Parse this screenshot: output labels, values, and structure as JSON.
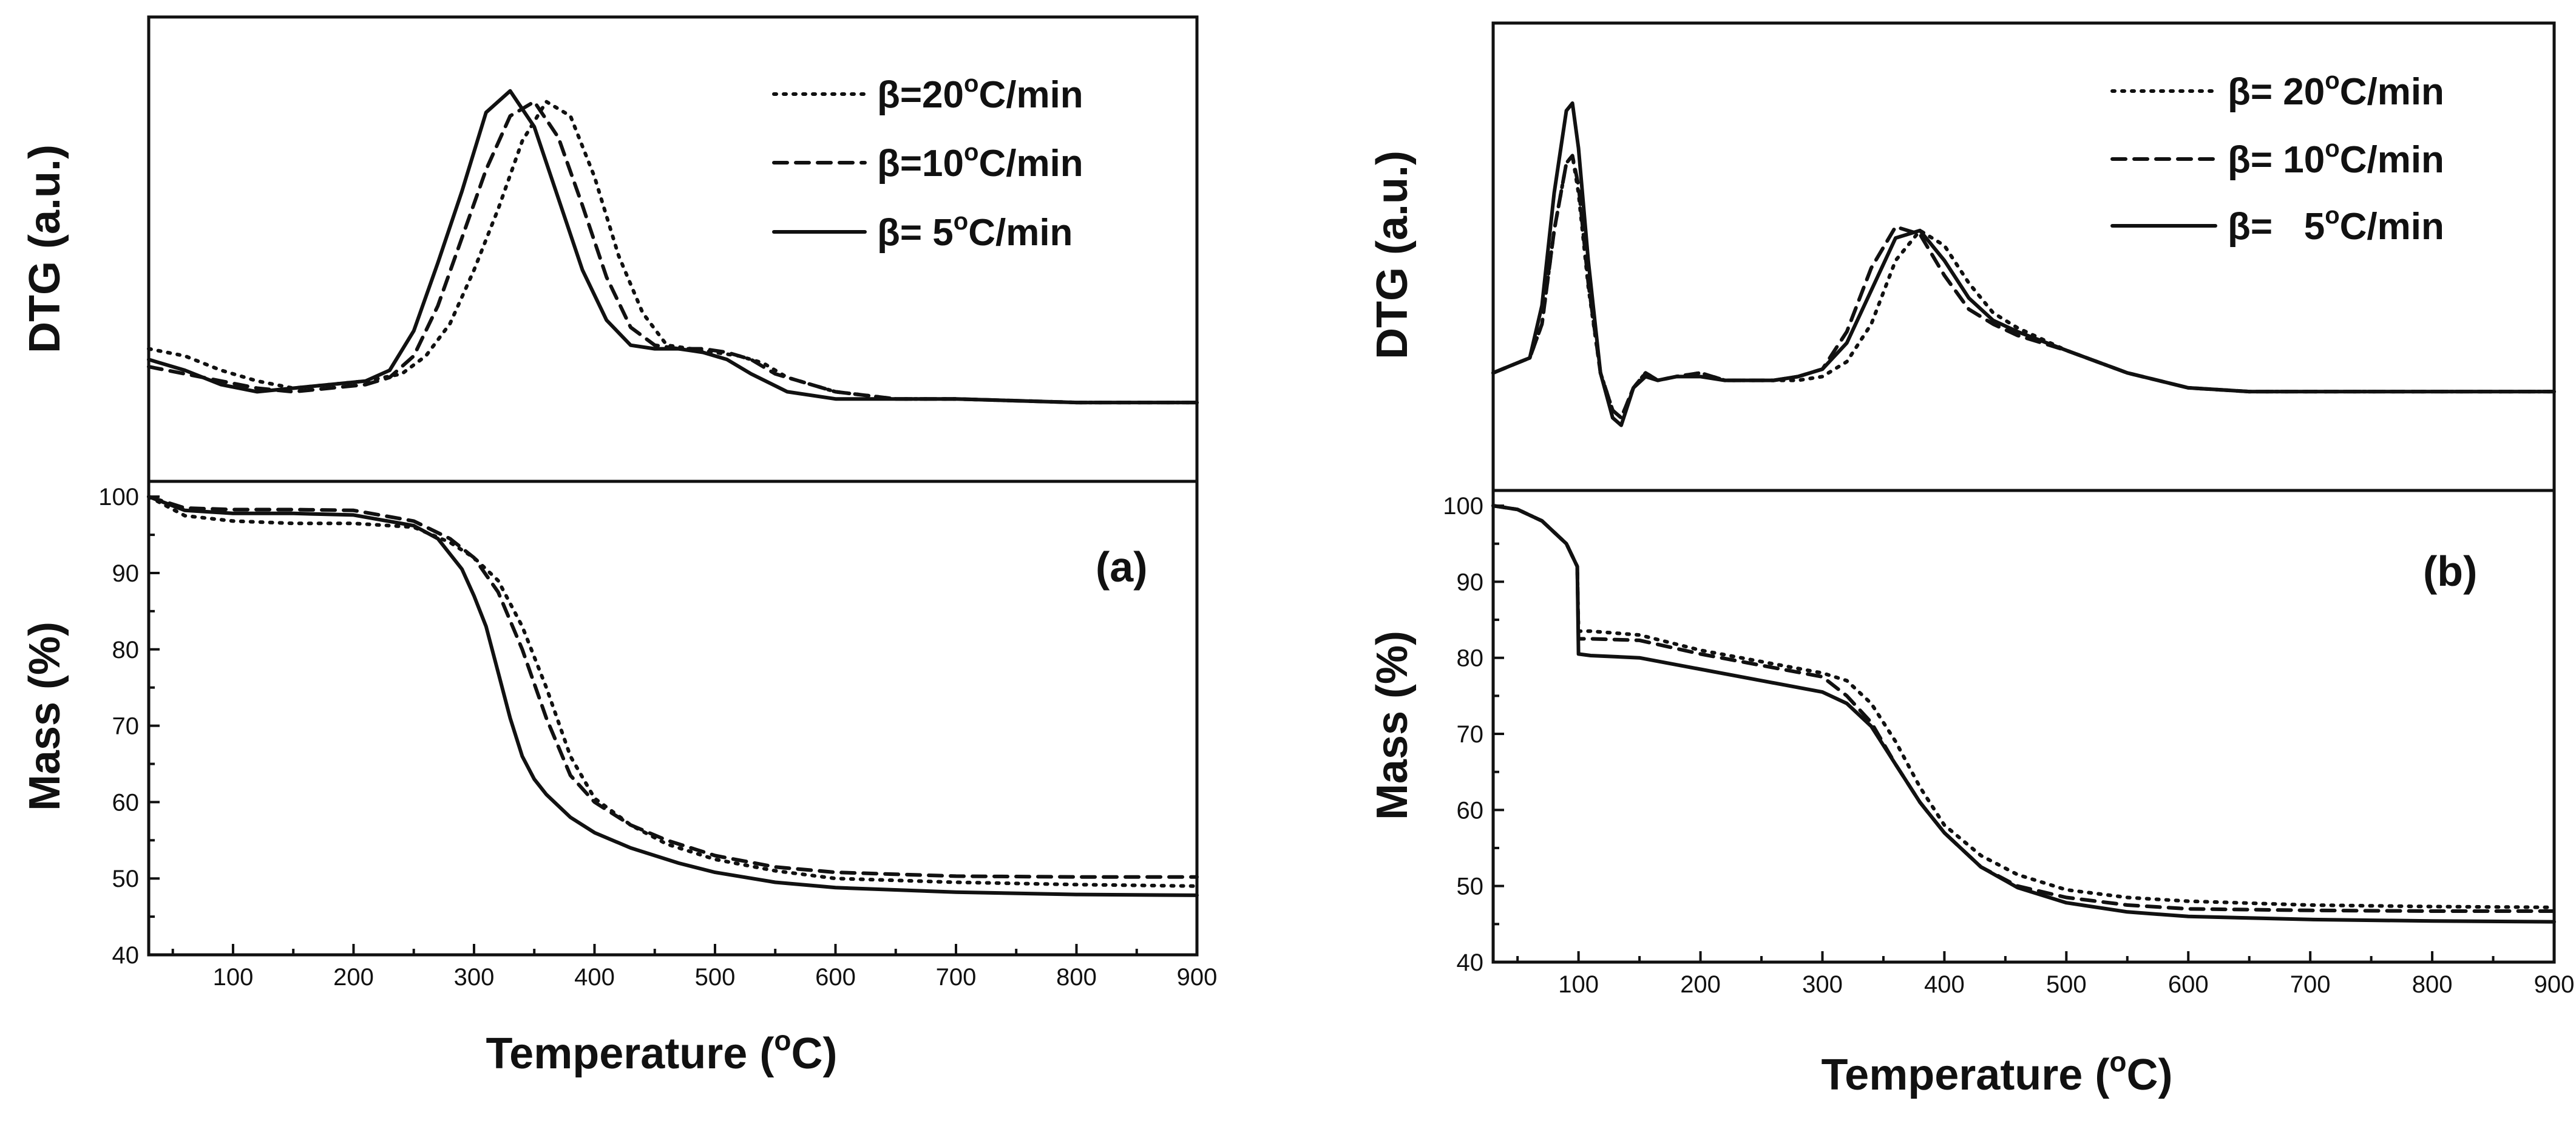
{
  "figure": {
    "x_title_main": "Temperature (",
    "x_title_sup": "o",
    "x_title_unit": "C)",
    "dtg_title": "DTG (a.u.)",
    "mass_title": "Mass (%)"
  },
  "chart_data": [
    {
      "type": "line",
      "panel": "(a)",
      "xlim": [
        30,
        900
      ],
      "x_ticks": [
        "100",
        "200",
        "300",
        "400",
        "500",
        "600",
        "700",
        "800",
        "900"
      ],
      "dtg": {
        "ylabel": "DTG (a.u.)",
        "ylim": [
          0,
          100
        ],
        "legend": [
          {
            "series": "20",
            "style": "dotted",
            "prefix": "β=20",
            "sup": "o",
            "suffix": "C/min"
          },
          {
            "series": "10",
            "style": "dashed",
            "prefix": "β=10",
            "sup": "o",
            "suffix": "C/min"
          },
          {
            "series": "5",
            "style": "solid",
            "prefix": "β= 5",
            "sup": "o",
            "suffix": "C/min"
          }
        ],
        "series": [
          {
            "name": "β=20°C/min",
            "style": "dotted",
            "x": [
              30,
              60,
              90,
              120,
              150,
              180,
              210,
              240,
              260,
              280,
              300,
              320,
              340,
              360,
              380,
              400,
              420,
              440,
              460,
              480,
              500,
              520,
              540,
              560,
              600,
              650,
              700,
              800,
              900
            ],
            "y": [
              26,
              24,
              20,
              17,
              15,
              16,
              17,
              19,
              24,
              33,
              48,
              65,
              84,
              95,
              91,
              74,
              52,
              36,
              27,
              26,
              25,
              24,
              22,
              18,
              14,
              12,
              12,
              11,
              11
            ]
          },
          {
            "name": "β=10°C/min",
            "style": "dashed",
            "x": [
              30,
              60,
              90,
              120,
              150,
              180,
              210,
              230,
              250,
              270,
              290,
              310,
              330,
              350,
              370,
              390,
              410,
              430,
              450,
              470,
              490,
              510,
              530,
              550,
              600,
              650,
              700,
              800,
              900
            ],
            "y": [
              21,
              19,
              17,
              15,
              14,
              15,
              16,
              18,
              24,
              38,
              57,
              76,
              91,
              95,
              85,
              66,
              46,
              32,
              27,
              26,
              26,
              25,
              23,
              19,
              14,
              12,
              12,
              11,
              11
            ]
          },
          {
            "name": "β=5°C/min",
            "style": "solid",
            "x": [
              30,
              60,
              90,
              120,
              150,
              180,
              210,
              230,
              250,
              270,
              290,
              310,
              330,
              350,
              370,
              390,
              410,
              430,
              450,
              470,
              490,
              510,
              530,
              560,
              600,
              650,
              700,
              800,
              900
            ],
            "y": [
              23,
              20,
              16,
              14,
              15,
              16,
              17,
              20,
              31,
              50,
              70,
              92,
              98,
              88,
              68,
              48,
              34,
              27,
              26,
              26,
              25,
              23,
              19,
              14,
              12,
              12,
              12,
              11,
              11
            ]
          }
        ]
      },
      "mass": {
        "ylabel": "Mass (%)",
        "ylim": [
          40,
          102
        ],
        "y_ticks": [
          "40",
          "50",
          "60",
          "70",
          "80",
          "90",
          "100"
        ],
        "series": [
          {
            "name": "β=20°C/min",
            "style": "dotted",
            "x": [
              30,
              60,
              100,
              150,
              200,
              250,
              280,
              300,
              320,
              340,
              360,
              380,
              400,
              430,
              460,
              500,
              550,
              600,
              700,
              800,
              900
            ],
            "y": [
              100,
              97.5,
              96.8,
              96.5,
              96.5,
              96,
              94,
              92,
              89,
              83,
              75,
              66,
              60.5,
              57,
              54.5,
              52.5,
              51,
              50,
              49.5,
              49.2,
              49
            ]
          },
          {
            "name": "β=10°C/min",
            "style": "dashed",
            "x": [
              30,
              60,
              100,
              150,
              200,
              250,
              280,
              300,
              320,
              340,
              360,
              380,
              400,
              430,
              460,
              500,
              550,
              600,
              700,
              800,
              900
            ],
            "y": [
              100,
              98.5,
              98.3,
              98.3,
              98.2,
              96.8,
              94.5,
              92,
              87.5,
              80,
              71,
              63.5,
              60,
              57,
              55,
              53,
              51.5,
              50.8,
              50.3,
              50.2,
              50.2
            ]
          },
          {
            "name": "β=5°C/min",
            "style": "solid",
            "x": [
              30,
              60,
              100,
              150,
              200,
              250,
              270,
              290,
              300,
              310,
              320,
              330,
              340,
              350,
              360,
              380,
              400,
              430,
              470,
              500,
              550,
              600,
              700,
              800,
              900
            ],
            "y": [
              100,
              98.2,
              97.8,
              97.8,
              97.6,
              96.2,
              94.5,
              90.5,
              87,
              83,
              77,
              71,
              66,
              63,
              61,
              58,
              56,
              54,
              52,
              50.8,
              49.5,
              48.8,
              48.2,
              47.9,
              47.8
            ]
          }
        ]
      }
    },
    {
      "type": "line",
      "panel": "(b)",
      "xlim": [
        30,
        900
      ],
      "x_ticks": [
        "100",
        "200",
        "300",
        "400",
        "500",
        "600",
        "700",
        "800",
        "900"
      ],
      "dtg": {
        "ylabel": "DTG (a.u.)",
        "ylim": [
          0,
          100
        ],
        "legend": [
          {
            "series": "20",
            "style": "dotted",
            "prefix": "β= 20",
            "sup": "o",
            "suffix": "C/min"
          },
          {
            "series": "10",
            "style": "dashed",
            "prefix": "β= 10",
            "sup": "o",
            "suffix": "C/min"
          },
          {
            "series": "5",
            "style": "solid",
            "prefix": "β=   5",
            "sup": "o",
            "suffix": "C/min"
          }
        ],
        "series": [
          {
            "name": "β= 20°C/min",
            "style": "dotted",
            "x": [
              30,
              45,
              60,
              70,
              80,
              90,
              95,
              100,
              108,
              118,
              128,
              135,
              145,
              155,
              165,
              180,
              200,
              220,
              240,
              260,
              280,
              300,
              320,
              340,
              360,
              380,
              400,
              420,
              440,
              460,
              500,
              550,
              600,
              650,
              700,
              800,
              900
            ],
            "y": [
              22,
              24,
              26,
              35,
              60,
              78,
              80,
              70,
              45,
              22,
              12,
              10,
              18,
              22,
              20,
              21,
              22,
              20,
              20,
              20,
              20,
              21,
              25,
              35,
              52,
              60,
              56,
              46,
              38,
              34,
              28,
              22,
              18,
              17,
              17,
              17,
              17
            ]
          },
          {
            "name": "β= 10°C/min",
            "style": "dashed",
            "x": [
              30,
              45,
              60,
              70,
              80,
              90,
              95,
              100,
              108,
              118,
              128,
              135,
              145,
              155,
              165,
              180,
              200,
              220,
              240,
              260,
              280,
              300,
              320,
              340,
              360,
              380,
              400,
              420,
              440,
              460,
              500,
              550,
              600,
              650,
              700,
              800,
              900
            ],
            "y": [
              22,
              24,
              26,
              35,
              60,
              78,
              80,
              72,
              46,
              22,
              12,
              10,
              18,
              22,
              20,
              21,
              22,
              20,
              20,
              20,
              21,
              23,
              33,
              50,
              61,
              59,
              48,
              39,
              35,
              32,
              28,
              22,
              18,
              17,
              17,
              17,
              17
            ]
          },
          {
            "name": "β=   5°C/min",
            "style": "solid",
            "x": [
              30,
              45,
              60,
              70,
              80,
              90,
              95,
              100,
              108,
              118,
              128,
              135,
              145,
              155,
              165,
              180,
              200,
              220,
              240,
              260,
              280,
              300,
              320,
              340,
              360,
              380,
              400,
              420,
              440,
              460,
              500,
              550,
              600,
              650,
              700,
              800,
              900
            ],
            "y": [
              22,
              24,
              26,
              40,
              70,
              92,
              94,
              82,
              52,
              22,
              10,
              8,
              18,
              21,
              20,
              21,
              21,
              20,
              20,
              20,
              21,
              23,
              30,
              44,
              58,
              60,
              52,
              42,
              36,
              33,
              28,
              22,
              18,
              17,
              17,
              17,
              17
            ]
          }
        ]
      },
      "mass": {
        "ylabel": "Mass (%)",
        "ylim": [
          40,
          102
        ],
        "y_ticks": [
          "40",
          "50",
          "60",
          "70",
          "80",
          "90",
          "100"
        ],
        "series": [
          {
            "name": "β= 20°C/min",
            "style": "dotted",
            "x": [
              30,
              50,
              70,
              90,
              99,
              100,
              110,
              150,
              200,
              250,
              300,
              320,
              340,
              360,
              380,
              400,
              430,
              460,
              500,
              550,
              600,
              700,
              800,
              900
            ],
            "y": [
              100,
              99.5,
              98,
              95,
              92,
              83.5,
              83.5,
              83,
              81,
              79.5,
              78,
              77,
              74,
              69,
              63,
              58,
              54,
              51.5,
              49.5,
              48.5,
              48,
              47.5,
              47.3,
              47.2
            ]
          },
          {
            "name": "β= 10°C/min",
            "style": "dashed",
            "x": [
              30,
              50,
              70,
              90,
              99,
              100,
              110,
              150,
              200,
              250,
              300,
              320,
              340,
              360,
              380,
              400,
              430,
              460,
              500,
              550,
              600,
              700,
              800,
              900
            ],
            "y": [
              100,
              99.5,
              98,
              95,
              92,
              82.5,
              82.5,
              82.3,
              80.5,
              79,
              77.5,
              75,
              71.5,
              66,
              61,
              57,
              52.5,
              50,
              48.5,
              47.5,
              47,
              46.8,
              46.7,
              46.7
            ]
          },
          {
            "name": "β=   5°C/min",
            "style": "solid",
            "x": [
              30,
              50,
              70,
              90,
              99,
              100,
              110,
              150,
              200,
              250,
              300,
              320,
              340,
              360,
              380,
              400,
              430,
              460,
              500,
              550,
              600,
              700,
              800,
              900
            ],
            "y": [
              100,
              99.5,
              98,
              95,
              92,
              80.5,
              80.3,
              80,
              78.5,
              77,
              75.5,
              74,
              71,
              66,
              61,
              57,
              52.5,
              49.8,
              47.8,
              46.6,
              46,
              45.6,
              45.4,
              45.3
            ]
          }
        ]
      }
    }
  ]
}
